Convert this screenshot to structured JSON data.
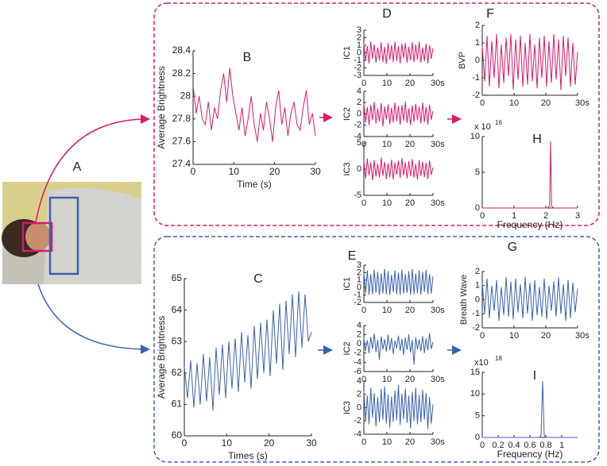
{
  "figure_label": "A",
  "chart_data": [
    {
      "type": "line",
      "panel": "B",
      "xlabel": "Time (s)",
      "ylabel": "Average Brightness",
      "color": "#d81b6a",
      "xlim": [
        0,
        30
      ],
      "ylim": [
        27.4,
        28.4
      ],
      "xticks": [
        0,
        10,
        20,
        30
      ],
      "yticks": [
        27.4,
        27.6,
        27.8,
        28,
        28.2,
        28.4
      ],
      "x": [
        0,
        0.75,
        1.5,
        2.25,
        3,
        3.75,
        4.5,
        5.25,
        6,
        6.75,
        7.5,
        8.25,
        9,
        9.75,
        10.5,
        11.25,
        12,
        12.75,
        13.5,
        14.25,
        15,
        15.75,
        16.5,
        17.25,
        18,
        18.75,
        19.5,
        20.25,
        21,
        21.75,
        22.5,
        23.25,
        24,
        24.75,
        25.5,
        26.25,
        27,
        27.75,
        28.5,
        29.25,
        30
      ],
      "values": [
        28.1,
        27.85,
        28.0,
        27.8,
        27.75,
        27.95,
        27.7,
        27.9,
        27.8,
        28.05,
        28.2,
        27.95,
        28.25,
        28.0,
        27.85,
        27.7,
        27.9,
        27.65,
        27.8,
        28.0,
        27.75,
        27.6,
        27.85,
        27.7,
        27.95,
        27.8,
        27.6,
        27.9,
        28.05,
        27.75,
        27.9,
        27.65,
        27.85,
        27.95,
        27.75,
        27.7,
        27.9,
        28.05,
        27.75,
        27.85,
        27.65
      ]
    },
    {
      "type": "line",
      "panel": "D",
      "ylabel": "IC1",
      "color": "#d81b6a",
      "xlim": [
        0,
        30
      ],
      "ylim": [
        -3,
        3
      ],
      "xticks": [
        0,
        10,
        20,
        {
          "value": 30,
          "label": "30s"
        }
      ],
      "yticks": [
        -3,
        -2,
        -1,
        0,
        1,
        2,
        3
      ],
      "x": [
        0,
        0.75,
        1.5,
        2.25,
        3,
        3.75,
        4.5,
        5.25,
        6,
        6.75,
        7.5,
        8.25,
        9,
        9.75,
        10.5,
        11.25,
        12,
        12.75,
        13.5,
        14.25,
        15,
        15.75,
        16.5,
        17.25,
        18,
        18.75,
        19.5,
        20.25,
        21,
        21.75,
        22.5,
        23.25,
        24,
        24.75,
        25.5,
        26.25,
        27,
        27.75,
        28.5,
        29.25,
        30
      ],
      "values": [
        1.2,
        -1.1,
        0.9,
        -1.4,
        1.5,
        -0.8,
        1.1,
        -1.3,
        0.7,
        -1.0,
        1.4,
        -1.2,
        0.8,
        -1.5,
        1.3,
        -0.9,
        1.0,
        -1.2,
        1.5,
        -1.1,
        0.9,
        -1.4,
        1.2,
        -0.7,
        1.3,
        -1.3,
        0.8,
        -1.0,
        1.4,
        -1.2,
        1.1,
        -0.9,
        1.5,
        -1.3,
        0.7,
        -1.1,
        1.2,
        -1.4,
        1.0,
        -0.8,
        0.6
      ]
    },
    {
      "type": "line",
      "ylabel": "IC2",
      "color": "#d81b6a",
      "xlim": [
        0,
        30
      ],
      "ylim": [
        -4,
        4
      ],
      "xticks": [
        0,
        10,
        20,
        {
          "value": 30,
          "label": "30s"
        }
      ],
      "yticks": [
        -4,
        -2,
        0,
        2,
        4
      ],
      "x": [
        0,
        0.75,
        1.5,
        2.25,
        3,
        3.75,
        4.5,
        5.25,
        6,
        6.75,
        7.5,
        8.25,
        9,
        9.75,
        10.5,
        11.25,
        12,
        12.75,
        13.5,
        14.25,
        15,
        15.75,
        16.5,
        17.25,
        18,
        18.75,
        19.5,
        20.25,
        21,
        21.75,
        22.5,
        23.25,
        24,
        24.75,
        25.5,
        26.25,
        27,
        27.75,
        28.5,
        29.25,
        30
      ],
      "values": [
        1.8,
        -1.5,
        1.2,
        -2.0,
        1.6,
        -1.1,
        2.1,
        -1.7,
        1.0,
        -1.4,
        1.9,
        -2.2,
        1.3,
        -1.0,
        1.7,
        -1.8,
        1.1,
        -1.5,
        2.0,
        -1.3,
        1.4,
        -1.9,
        1.6,
        -1.2,
        2.2,
        -1.6,
        1.0,
        -2.0,
        1.5,
        -1.4,
        1.8,
        -1.1,
        1.3,
        -1.7,
        2.0,
        -1.5,
        1.2,
        -1.9,
        1.6,
        -1.0,
        0.5
      ]
    },
    {
      "type": "line",
      "ylabel": "IC3",
      "color": "#d81b6a",
      "xlim": [
        0,
        30
      ],
      "ylim": [
        -5,
        5
      ],
      "xticks": [
        0,
        10,
        20,
        {
          "value": 30,
          "label": "30s"
        }
      ],
      "yticks": [
        -5,
        0,
        5
      ],
      "x": [
        0,
        0.75,
        1.5,
        2.25,
        3,
        3.75,
        4.5,
        5.25,
        6,
        6.75,
        7.5,
        8.25,
        9,
        9.75,
        10.5,
        11.25,
        12,
        12.75,
        13.5,
        14.25,
        15,
        15.75,
        16.5,
        17.25,
        18,
        18.75,
        19.5,
        20.25,
        21,
        21.75,
        22.5,
        23.25,
        24,
        24.75,
        25.5,
        26.25,
        27,
        27.75,
        28.5,
        29.25,
        30
      ],
      "values": [
        1.5,
        -1.8,
        2.0,
        -1.2,
        1.3,
        -2.1,
        1.7,
        -1.4,
        1.0,
        -1.6,
        2.2,
        -1.3,
        1.4,
        -1.9,
        1.1,
        -1.5,
        1.8,
        -2.0,
        1.2,
        -1.1,
        1.6,
        -1.7,
        2.1,
        -1.2,
        1.3,
        -1.8,
        1.5,
        -1.4,
        1.9,
        -1.6,
        1.0,
        -2.0,
        1.7,
        -1.3,
        1.4,
        -1.5,
        1.2,
        -1.9,
        1.6,
        -1.1,
        0.3
      ]
    },
    {
      "type": "line",
      "panel": "F",
      "ylabel": "BVP",
      "color": "#d81b6a",
      "xlim": [
        0,
        30
      ],
      "ylim": [
        -2,
        2
      ],
      "xticks": [
        0,
        10,
        20,
        {
          "value": 30,
          "label": "30s"
        }
      ],
      "yticks": [
        -2,
        -1,
        0,
        1,
        2
      ],
      "x": [
        0,
        0.75,
        1.5,
        2.25,
        3,
        3.75,
        4.5,
        5.25,
        6,
        6.75,
        7.5,
        8.25,
        9,
        9.75,
        10.5,
        11.25,
        12,
        12.75,
        13.5,
        14.25,
        15,
        15.75,
        16.5,
        17.25,
        18,
        18.75,
        19.5,
        20.25,
        21,
        21.75,
        22.5,
        23.25,
        24,
        24.75,
        25.5,
        26.25,
        27,
        27.75,
        28.5,
        29.25,
        30
      ],
      "values": [
        0.8,
        -1.2,
        1.4,
        -1.5,
        1.1,
        -1.0,
        1.5,
        -1.6,
        0.9,
        -1.3,
        1.3,
        -0.9,
        1.5,
        -1.7,
        1.2,
        -1.1,
        1.4,
        -1.5,
        1.0,
        -1.4,
        1.5,
        -1.2,
        0.9,
        -1.6,
        1.3,
        -1.0,
        1.4,
        -1.5,
        1.1,
        -1.3,
        1.5,
        -1.1,
        1.2,
        -1.7,
        1.4,
        -0.9,
        1.3,
        -1.5,
        1.0,
        -1.4,
        0.5
      ]
    },
    {
      "type": "line",
      "panel": "H",
      "xlabel": "Frequency (Hz)",
      "scale": "x 10",
      "scale_exp": "16",
      "color": "#d81b6a",
      "xlim": [
        0,
        3
      ],
      "ylim": [
        0,
        10
      ],
      "xticks": [
        0,
        1,
        2,
        3
      ],
      "yticks": [
        0,
        5,
        10
      ],
      "x": [
        0,
        2.05,
        2.12,
        2.15,
        2.18,
        2.25,
        3
      ],
      "values": [
        0,
        0,
        0.3,
        9.3,
        0.3,
        0,
        0
      ]
    },
    {
      "type": "line",
      "panel": "C",
      "xlabel": "Times (s)",
      "ylabel": "Average Brightness",
      "color": "#3a62b0",
      "xlim": [
        0,
        30
      ],
      "ylim": [
        60,
        65
      ],
      "xticks": [
        0,
        10,
        20,
        30
      ],
      "yticks": [
        60,
        61,
        62,
        63,
        64,
        65
      ],
      "x": [
        0,
        0.75,
        1.5,
        2.25,
        3,
        3.75,
        4.5,
        5.25,
        6,
        6.75,
        7.5,
        8.25,
        9,
        9.75,
        10.5,
        11.25,
        12,
        12.75,
        13.5,
        14.25,
        15,
        15.75,
        16.5,
        17.25,
        18,
        18.75,
        19.5,
        20.25,
        21,
        21.75,
        22.5,
        23.25,
        24,
        24.75,
        25.5,
        26.25,
        27,
        27.75,
        28.5,
        29.25,
        30
      ],
      "values": [
        62.2,
        61.2,
        62.4,
        60.9,
        62.3,
        61.0,
        62.6,
        61.1,
        62.5,
        60.8,
        62.8,
        61.3,
        62.9,
        61.2,
        63.0,
        61.5,
        63.1,
        61.4,
        63.3,
        61.7,
        63.2,
        61.5,
        63.5,
        61.8,
        63.6,
        62.0,
        63.7,
        61.9,
        64.0,
        62.3,
        64.2,
        62.1,
        64.3,
        62.6,
        64.5,
        62.5,
        64.6,
        62.8,
        64.5,
        63.0,
        63.3
      ]
    },
    {
      "type": "line",
      "panel": "E",
      "ylabel": "IC1",
      "color": "#3a62b0",
      "xlim": [
        0,
        30
      ],
      "ylim": [
        -2,
        3
      ],
      "xticks": [
        0,
        10,
        20,
        {
          "value": 30,
          "label": "30s"
        }
      ],
      "yticks": [
        -2,
        -1,
        0,
        1,
        2,
        3
      ],
      "x": [
        0,
        0.75,
        1.5,
        2.25,
        3,
        3.75,
        4.5,
        5.25,
        6,
        6.75,
        7.5,
        8.25,
        9,
        9.75,
        10.5,
        11.25,
        12,
        12.75,
        13.5,
        14.25,
        15,
        15.75,
        16.5,
        17.25,
        18,
        18.75,
        19.5,
        20.25,
        21,
        21.75,
        22.5,
        23.25,
        24,
        24.75,
        25.5,
        26.25,
        27,
        27.75,
        28.5,
        29.25,
        30
      ],
      "values": [
        2.0,
        -0.8,
        2.3,
        -1.0,
        1.8,
        -0.9,
        2.4,
        -0.7,
        2.1,
        -1.0,
        1.9,
        -0.8,
        2.5,
        -0.9,
        2.2,
        -1.0,
        1.7,
        -0.6,
        2.3,
        -0.9,
        2.0,
        -1.0,
        2.4,
        -0.8,
        1.8,
        -0.7,
        2.2,
        -1.0,
        2.5,
        -0.9,
        1.9,
        -0.8,
        2.3,
        -1.0,
        2.1,
        -0.6,
        2.4,
        -0.9,
        1.8,
        -0.8,
        1.5
      ]
    },
    {
      "type": "line",
      "ylabel": "IC2",
      "color": "#3a62b0",
      "xlim": [
        0,
        30
      ],
      "ylim": [
        -6,
        4
      ],
      "xticks": [
        0,
        10,
        20,
        {
          "value": 30,
          "label": "30s"
        }
      ],
      "yticks": [
        -6,
        -4,
        -2,
        0,
        2,
        4
      ],
      "x": [
        0,
        0.75,
        1.5,
        2.25,
        3,
        3.75,
        4.5,
        5.25,
        6,
        6.75,
        7.5,
        8.25,
        9,
        9.75,
        10.5,
        11.25,
        12,
        12.75,
        13.5,
        14.25,
        15,
        15.75,
        16.5,
        17.25,
        18,
        18.75,
        19.5,
        20.25,
        21,
        21.75,
        22.5,
        23.25,
        24,
        24.75,
        25.5,
        26.25,
        27,
        27.75,
        28.5,
        29.25,
        30
      ],
      "values": [
        1.2,
        -1.5,
        0.8,
        -2.0,
        1.5,
        -1.1,
        2.2,
        -1.8,
        0.9,
        -3.5,
        1.6,
        -1.2,
        1.0,
        -1.7,
        2.0,
        -1.4,
        1.3,
        -2.2,
        0.7,
        -1.0,
        1.8,
        -1.5,
        1.1,
        -2.4,
        1.4,
        -1.3,
        2.1,
        -1.9,
        0.9,
        -4.5,
        1.5,
        -1.2,
        1.0,
        -1.6,
        1.7,
        -2.0,
        1.2,
        -1.4,
        2.3,
        -1.1,
        0.4
      ]
    },
    {
      "type": "line",
      "ylabel": "IC3",
      "color": "#3a62b0",
      "xlim": [
        0,
        30
      ],
      "ylim": [
        -4,
        4
      ],
      "xticks": [
        0,
        10,
        20,
        {
          "value": 30,
          "label": "30s"
        }
      ],
      "yticks": [
        -4,
        -2,
        0,
        2,
        4
      ],
      "x": [
        0,
        0.75,
        1.5,
        2.25,
        3,
        3.75,
        4.5,
        5.25,
        6,
        6.75,
        7.5,
        8.25,
        9,
        9.75,
        10.5,
        11.25,
        12,
        12.75,
        13.5,
        14.25,
        15,
        15.75,
        16.5,
        17.25,
        18,
        18.75,
        19.5,
        20.25,
        21,
        21.75,
        22.5,
        23.25,
        24,
        24.75,
        25.5,
        26.25,
        27,
        27.75,
        28.5,
        29.25,
        30
      ],
      "values": [
        2.5,
        -2.0,
        1.8,
        -2.5,
        3.0,
        -1.5,
        2.2,
        -2.8,
        1.6,
        -2.2,
        2.8,
        -1.8,
        3.2,
        -2.4,
        2.0,
        -3.0,
        1.7,
        -2.1,
        2.6,
        -1.9,
        3.4,
        -2.6,
        2.1,
        -1.7,
        2.9,
        -2.3,
        1.8,
        -3.1,
        2.4,
        -2.0,
        3.0,
        -2.5,
        1.9,
        -2.2,
        2.7,
        -1.8,
        2.2,
        -3.2,
        1.6,
        -2.4,
        0.5
      ]
    },
    {
      "type": "line",
      "panel": "G",
      "ylabel": "Breath Wave",
      "color": "#3a62b0",
      "xlim": [
        0,
        30
      ],
      "ylim": [
        -2,
        2
      ],
      "xticks": [
        0,
        10,
        20,
        {
          "value": 30,
          "label": "30s"
        }
      ],
      "yticks": [
        -2,
        -1,
        0,
        1,
        2
      ],
      "x": [
        0,
        0.75,
        1.5,
        2.25,
        3,
        3.75,
        4.5,
        5.25,
        6,
        6.75,
        7.5,
        8.25,
        9,
        9.75,
        10.5,
        11.25,
        12,
        12.75,
        13.5,
        14.25,
        15,
        15.75,
        16.5,
        17.25,
        18,
        18.75,
        19.5,
        20.25,
        21,
        21.75,
        22.5,
        23.25,
        24,
        24.75,
        25.5,
        26.25,
        27,
        27.75,
        28.5,
        29.25,
        30
      ],
      "values": [
        1.2,
        -1.0,
        1.5,
        -1.3,
        1.0,
        -0.8,
        1.4,
        -1.5,
        0.9,
        -1.1,
        1.6,
        -1.2,
        1.3,
        -1.4,
        1.5,
        -0.9,
        1.1,
        -1.3,
        1.6,
        -1.0,
        1.2,
        -1.5,
        1.4,
        -1.1,
        0.9,
        -1.2,
        1.5,
        -1.4,
        1.0,
        -0.8,
        1.3,
        -1.2,
        1.6,
        -1.0,
        1.1,
        -1.5,
        1.4,
        -1.3,
        1.2,
        -0.9,
        0.8
      ]
    },
    {
      "type": "line",
      "panel": "I",
      "xlabel": "Frequency (Hz)",
      "scale": "x10",
      "scale_exp": "18",
      "color": "#3a62b0",
      "xlim": [
        0,
        1.2
      ],
      "ylim": [
        0,
        15
      ],
      "xticks": [
        0,
        0.2,
        0.4,
        0.6,
        0.8,
        1
      ],
      "yticks": [
        0,
        5,
        10,
        15
      ],
      "x": [
        0,
        0.72,
        0.74,
        0.76,
        0.78,
        0.8,
        1.2
      ],
      "values": [
        0,
        0,
        0.5,
        13,
        0.5,
        0,
        0
      ]
    }
  ]
}
